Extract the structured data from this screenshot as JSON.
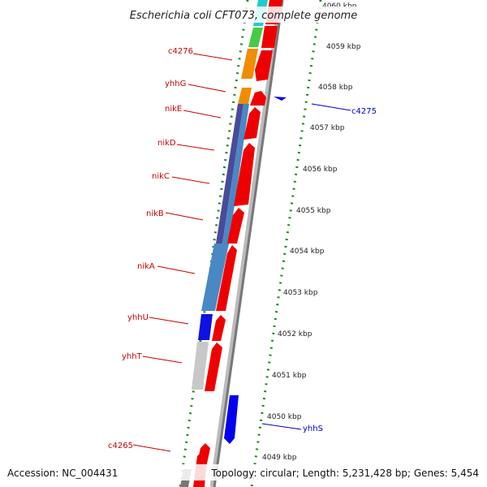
{
  "title": "Escherichia coli CFT073, complete genome",
  "footer": {
    "accession": "Accession: NC_004431",
    "summary": "Topology: circular; Length: 5,231,428 bp; Genes: 5,454"
  },
  "colors": {
    "label_red": "#cc0000",
    "label_blue": "#0000cc",
    "forward_cds": "#ee0000",
    "reverse_cds": "#0000ee",
    "dotted_green": "#228822",
    "backbone": "#888888"
  },
  "scale_ticks": [
    {
      "label": "4060 kbp",
      "kbp": 4060
    },
    {
      "label": "4059 kbp",
      "kbp": 4059
    },
    {
      "label": "4058 kbp",
      "kbp": 4058
    },
    {
      "label": "4057 kbp",
      "kbp": 4057
    },
    {
      "label": "4056 kbp",
      "kbp": 4056
    },
    {
      "label": "4055 kbp",
      "kbp": 4055
    },
    {
      "label": "4054 kbp",
      "kbp": 4054
    },
    {
      "label": "4053 kbp",
      "kbp": 4053
    },
    {
      "label": "4052 kbp",
      "kbp": 4052
    },
    {
      "label": "4051 kbp",
      "kbp": 4051
    },
    {
      "label": "4050 kbp",
      "kbp": 4050
    },
    {
      "label": "4049 kbp",
      "kbp": 4049
    }
  ],
  "genes_left": [
    {
      "name": "c4276",
      "color": "#cc0000"
    },
    {
      "name": "yhhG",
      "color": "#cc0000"
    },
    {
      "name": "nikE",
      "color": "#cc0000"
    },
    {
      "name": "nikD",
      "color": "#cc0000"
    },
    {
      "name": "nikC",
      "color": "#cc0000"
    },
    {
      "name": "nikB",
      "color": "#cc0000"
    },
    {
      "name": "nikA",
      "color": "#cc0000"
    },
    {
      "name": "yhhU",
      "color": "#cc0000"
    },
    {
      "name": "yhhT",
      "color": "#cc0000"
    },
    {
      "name": "c4265",
      "color": "#cc0000"
    }
  ],
  "genes_right": [
    {
      "name": "c4275",
      "color": "#0000cc"
    },
    {
      "name": "yhhS",
      "color": "#0000cc"
    }
  ]
}
